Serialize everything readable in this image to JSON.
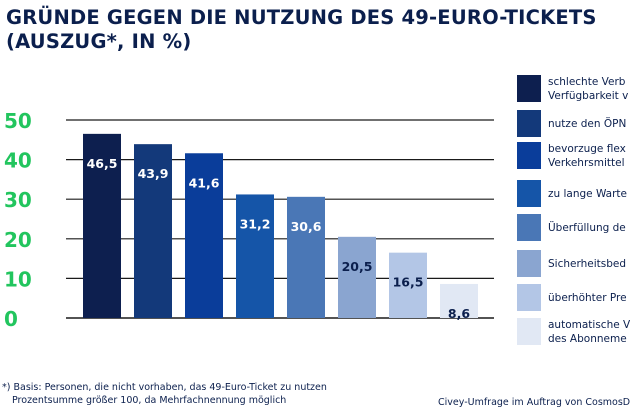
{
  "chart_data": {
    "type": "bar",
    "title_lines": [
      "GRÜNDE GEGEN DIE NUTZUNG DES 49-EURO-TICKETS",
      "(AUSZUG*, IN %)"
    ],
    "categories": [
      "schlechte Verbindungen/\nVerfügbarkeit v",
      "nutze den ÖPN",
      "bevorzuge flex\nVerkehrsmittel",
      "zu lange Warte",
      "Überfüllung de",
      "Sicherheitsbed",
      "überhöhter Pre",
      "automatische V\ndes Abonneme"
    ],
    "legend_labels": [
      "schlechte Verb\nVerfügbarkeit v",
      "nutze den ÖPN",
      "bevorzuge flex\nVerkehrsmittel",
      "zu lange Warte",
      "Überfüllung de",
      "Sicherheitsbed",
      "überhöhter Pre",
      "automatische V\ndes Abonneme"
    ],
    "values": [
      46.5,
      43.9,
      41.6,
      31.2,
      30.6,
      20.5,
      16.5,
      8.6
    ],
    "value_labels": [
      "46,5",
      "43,9",
      "41,6",
      "31,2",
      "30,6",
      "20,5",
      "16,5",
      "8,6"
    ],
    "colors": [
      "#0d1f4f",
      "#13397a",
      "#0a3d9a",
      "#1555a8",
      "#4a77b6",
      "#8aa5d0",
      "#b3c6e6",
      "#e1e8f4"
    ],
    "label_colors": [
      "#ffffff",
      "#ffffff",
      "#ffffff",
      "#ffffff",
      "#ffffff",
      "#0b1f4d",
      "#0b1f4d",
      "#0b1f4d"
    ],
    "yticks": [
      0,
      10,
      20,
      30,
      40,
      50
    ],
    "ylim": [
      0,
      50
    ],
    "ytick_color": "#22c55e",
    "grid": true,
    "xlabel": "",
    "ylabel": ""
  },
  "footnote": {
    "line1": "*) Basis: Personen, die nicht vorhaben, das 49-Euro-Ticket zu nutzen",
    "line2": "Prozentsumme größer 100, da Mehrfachnennung möglich"
  },
  "source": "Civey-Umfrage im Auftrag von CosmosDirekt"
}
